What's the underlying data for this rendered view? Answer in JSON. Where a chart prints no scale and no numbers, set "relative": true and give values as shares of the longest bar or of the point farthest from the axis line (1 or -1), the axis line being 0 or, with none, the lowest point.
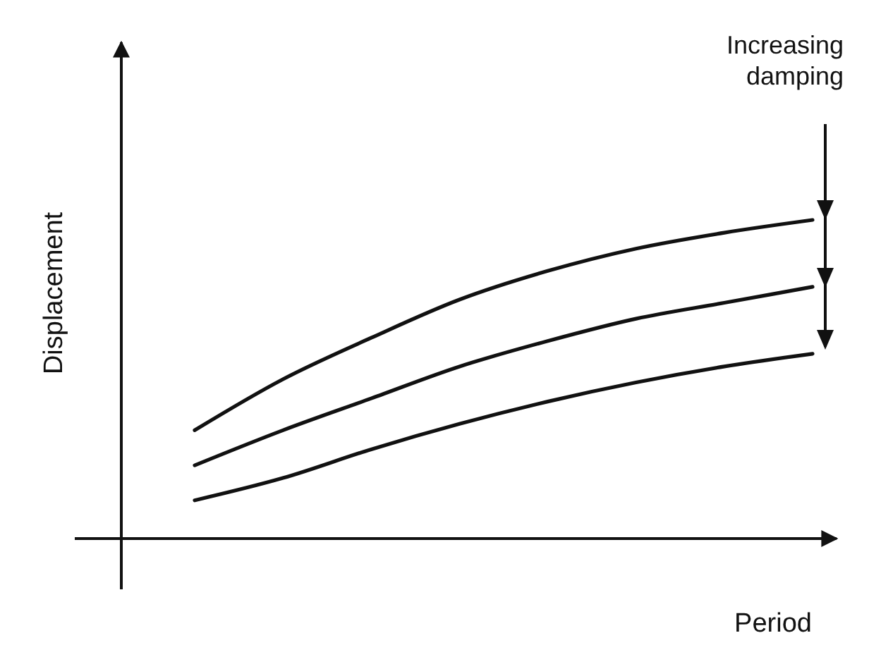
{
  "chart_data": {
    "type": "line",
    "relative": true,
    "xlabel": "Period",
    "ylabel": "Displacement",
    "annotations": [
      "Increasing damping"
    ],
    "categories": [
      null,
      null,
      null,
      null,
      null,
      null,
      null,
      null
    ],
    "series": [
      {
        "color": "#111111",
        "values": [
          0.34,
          0.5,
          0.63,
          0.75,
          0.84,
          0.91,
          0.96,
          1
        ]
      },
      {
        "color": "#111111",
        "values": [
          0.23,
          0.34,
          0.44,
          0.54,
          0.62,
          0.69,
          0.74,
          0.79
        ]
      },
      {
        "color": "#111111",
        "values": [
          0.12,
          0.19,
          0.28,
          0.36,
          0.43,
          0.49,
          0.54,
          0.58
        ]
      }
    ]
  }
}
